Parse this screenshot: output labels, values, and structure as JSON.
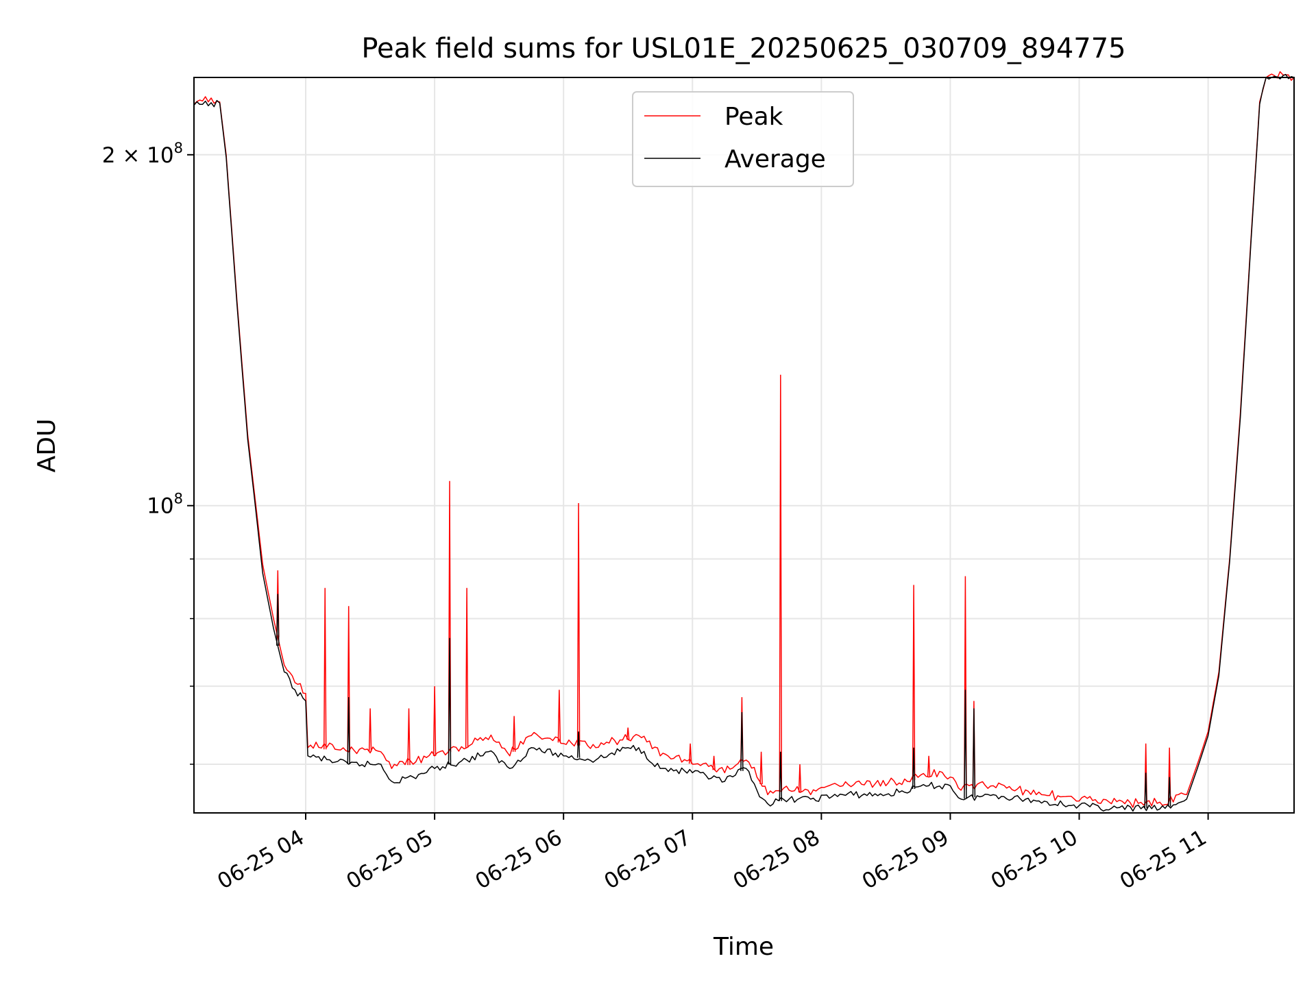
{
  "chart_data": {
    "type": "line",
    "title": "Peak field sums for USL01E_20250625_030709_894775",
    "xlabel": "Time",
    "ylabel": "ADU",
    "x_axis": {
      "kind": "time",
      "range": [
        "06-25 03:08",
        "06-25 11:40"
      ]
    },
    "y_axis": {
      "scale": "log",
      "range": [
        54500000,
        233000000
      ]
    },
    "grid": true,
    "legend_position": "top-center",
    "x_ticks": [
      {
        "t": "06-25 04:00",
        "label": "06-25 04"
      },
      {
        "t": "06-25 05:00",
        "label": "06-25 05"
      },
      {
        "t": "06-25 06:00",
        "label": "06-25 06"
      },
      {
        "t": "06-25 07:00",
        "label": "06-25 07"
      },
      {
        "t": "06-25 08:00",
        "label": "06-25 08"
      },
      {
        "t": "06-25 09:00",
        "label": "06-25 09"
      },
      {
        "t": "06-25 10:00",
        "label": "06-25 10"
      },
      {
        "t": "06-25 11:00",
        "label": "06-25 11"
      }
    ],
    "y_major_ticks": [
      {
        "value": 100000000,
        "base": "10",
        "exp": "8",
        "coef": ""
      },
      {
        "value": 200000000,
        "base": "10",
        "exp": "8",
        "coef": "2 × "
      }
    ],
    "y_minor_ticks": [
      60000000,
      70000000,
      80000000,
      90000000
    ],
    "series": [
      {
        "name": "Peak",
        "color": "#ff0000",
        "points": [
          [
            "06-25 03:08",
            221000000
          ],
          [
            "06-25 03:20",
            222000000
          ],
          [
            "06-25 03:23",
            200000000
          ],
          [
            "06-25 03:28",
            150000000
          ],
          [
            "06-25 03:33",
            115000000
          ],
          [
            "06-25 03:36",
            103000000
          ],
          [
            "06-25 03:40",
            89000000
          ],
          [
            "06-25 03:45",
            80000000
          ],
          [
            "06-25 03:50",
            73000000
          ],
          [
            "06-25 03:55",
            70500000
          ],
          [
            "06-25 04:00",
            69000000
          ],
          [
            "06-25 04:01",
            62000000
          ],
          [
            "06-25 04:20",
            61500000
          ],
          [
            "06-25 04:35",
            61500000
          ],
          [
            "06-25 04:40",
            59500000
          ],
          [
            "06-25 04:50",
            60000000
          ],
          [
            "06-25 05:00",
            61000000
          ],
          [
            "06-25 05:15",
            62000000
          ],
          [
            "06-25 05:25",
            63000000
          ],
          [
            "06-25 05:35",
            61000000
          ],
          [
            "06-25 05:45",
            63500000
          ],
          [
            "06-25 06:00",
            62500000
          ],
          [
            "06-25 06:15",
            62000000
          ],
          [
            "06-25 06:30",
            63000000
          ],
          [
            "06-25 06:35",
            63500000
          ],
          [
            "06-25 06:45",
            61000000
          ],
          [
            "06-25 07:00",
            60000000
          ],
          [
            "06-25 07:15",
            59000000
          ],
          [
            "06-25 07:25",
            60500000
          ],
          [
            "06-25 07:30",
            58500000
          ],
          [
            "06-25 07:35",
            56500000
          ],
          [
            "06-25 07:45",
            57000000
          ],
          [
            "06-25 07:55",
            56500000
          ],
          [
            "06-25 08:10",
            57500000
          ],
          [
            "06-25 08:30",
            57500000
          ],
          [
            "06-25 08:50",
            58500000
          ],
          [
            "06-25 09:00",
            58500000
          ],
          [
            "06-25 09:05",
            57000000
          ],
          [
            "06-25 09:20",
            57500000
          ],
          [
            "06-25 09:40",
            56500000
          ],
          [
            "06-25 10:00",
            55800000
          ],
          [
            "06-25 10:15",
            55500000
          ],
          [
            "06-25 10:40",
            55400000
          ],
          [
            "06-25 10:50",
            56500000
          ],
          [
            "06-25 10:55",
            60000000
          ],
          [
            "06-25 11:00",
            64000000
          ],
          [
            "06-25 11:05",
            72000000
          ],
          [
            "06-25 11:10",
            90000000
          ],
          [
            "06-25 11:15",
            120000000
          ],
          [
            "06-25 11:20",
            170000000
          ],
          [
            "06-25 11:24",
            222000000
          ],
          [
            "06-25 11:27",
            233000000
          ],
          [
            "06-25 11:40",
            233000000
          ]
        ],
        "spikes": [
          [
            "06-25 03:47",
            88000000
          ],
          [
            "06-25 04:09",
            85000000
          ],
          [
            "06-25 04:20",
            82000000
          ],
          [
            "06-25 04:30",
            67000000
          ],
          [
            "06-25 04:48",
            67000000
          ],
          [
            "06-25 05:00",
            70000000
          ],
          [
            "06-25 05:07",
            105000000
          ],
          [
            "06-25 05:15",
            85000000
          ],
          [
            "06-25 05:37",
            66000000
          ],
          [
            "06-25 05:58",
            69500000
          ],
          [
            "06-25 06:07",
            100500000
          ],
          [
            "06-25 06:30",
            64500000
          ],
          [
            "06-25 06:59",
            62500000
          ],
          [
            "06-25 07:10",
            61000000
          ],
          [
            "06-25 07:23",
            68500000
          ],
          [
            "06-25 07:32",
            61500000
          ],
          [
            "06-25 07:41",
            129500000
          ],
          [
            "06-25 07:50",
            60000000
          ],
          [
            "06-25 08:50",
            61000000
          ],
          [
            "06-25 08:43",
            85500000
          ],
          [
            "06-25 09:07",
            87000000
          ],
          [
            "06-25 09:11",
            68000000
          ],
          [
            "06-25 10:31",
            62500000
          ],
          [
            "06-25 10:42",
            62000000
          ]
        ]
      },
      {
        "name": "Average",
        "color": "#000000",
        "points": [
          [
            "06-25 03:08",
            220500000
          ],
          [
            "06-25 03:20",
            221500000
          ],
          [
            "06-25 03:23",
            199000000
          ],
          [
            "06-25 03:28",
            149000000
          ],
          [
            "06-25 03:33",
            114000000
          ],
          [
            "06-25 03:36",
            102000000
          ],
          [
            "06-25 03:40",
            87500000
          ],
          [
            "06-25 03:45",
            78500000
          ],
          [
            "06-25 03:50",
            72000000
          ],
          [
            "06-25 03:55",
            69500000
          ],
          [
            "06-25 04:00",
            68000000
          ],
          [
            "06-25 04:01",
            61000000
          ],
          [
            "06-25 04:20",
            60000000
          ],
          [
            "06-25 04:35",
            60000000
          ],
          [
            "06-25 04:40",
            58000000
          ],
          [
            "06-25 04:50",
            58500000
          ],
          [
            "06-25 05:00",
            59500000
          ],
          [
            "06-25 05:15",
            60500000
          ],
          [
            "06-25 05:25",
            61500000
          ],
          [
            "06-25 05:35",
            59500000
          ],
          [
            "06-25 05:45",
            62000000
          ],
          [
            "06-25 06:00",
            61000000
          ],
          [
            "06-25 06:15",
            60500000
          ],
          [
            "06-25 06:30",
            62000000
          ],
          [
            "06-25 06:35",
            62000000
          ],
          [
            "06-25 06:45",
            59500000
          ],
          [
            "06-25 07:00",
            59000000
          ],
          [
            "06-25 07:15",
            58000000
          ],
          [
            "06-25 07:25",
            59500000
          ],
          [
            "06-25 07:30",
            57000000
          ],
          [
            "06-25 07:35",
            55500000
          ],
          [
            "06-25 07:45",
            56000000
          ],
          [
            "06-25 07:55",
            56000000
          ],
          [
            "06-25 08:10",
            56500000
          ],
          [
            "06-25 08:30",
            56500000
          ],
          [
            "06-25 08:50",
            57500000
          ],
          [
            "06-25 09:00",
            57500000
          ],
          [
            "06-25 09:05",
            56000000
          ],
          [
            "06-25 09:20",
            56500000
          ],
          [
            "06-25 09:40",
            55800000
          ],
          [
            "06-25 10:00",
            55300000
          ],
          [
            "06-25 10:15",
            55000000
          ],
          [
            "06-25 10:40",
            55000000
          ],
          [
            "06-25 10:50",
            56000000
          ],
          [
            "06-25 10:55",
            59500000
          ],
          [
            "06-25 11:00",
            63500000
          ],
          [
            "06-25 11:05",
            71500000
          ],
          [
            "06-25 11:10",
            89500000
          ],
          [
            "06-25 11:15",
            119000000
          ],
          [
            "06-25 11:20",
            169000000
          ],
          [
            "06-25 11:24",
            221000000
          ],
          [
            "06-25 11:27",
            233000000
          ],
          [
            "06-25 11:40",
            233000000
          ]
        ],
        "spikes": [
          [
            "06-25 03:47",
            84000000
          ],
          [
            "06-25 04:20",
            68500000
          ],
          [
            "06-25 05:07",
            77000000
          ],
          [
            "06-25 06:07",
            64000000
          ],
          [
            "06-25 07:23",
            66500000
          ],
          [
            "06-25 07:41",
            61500000
          ],
          [
            "06-25 08:43",
            62000000
          ],
          [
            "06-25 09:07",
            69500000
          ],
          [
            "06-25 09:11",
            67000000
          ],
          [
            "06-25 10:31",
            59000000
          ],
          [
            "06-25 10:42",
            58500000
          ]
        ]
      }
    ]
  }
}
